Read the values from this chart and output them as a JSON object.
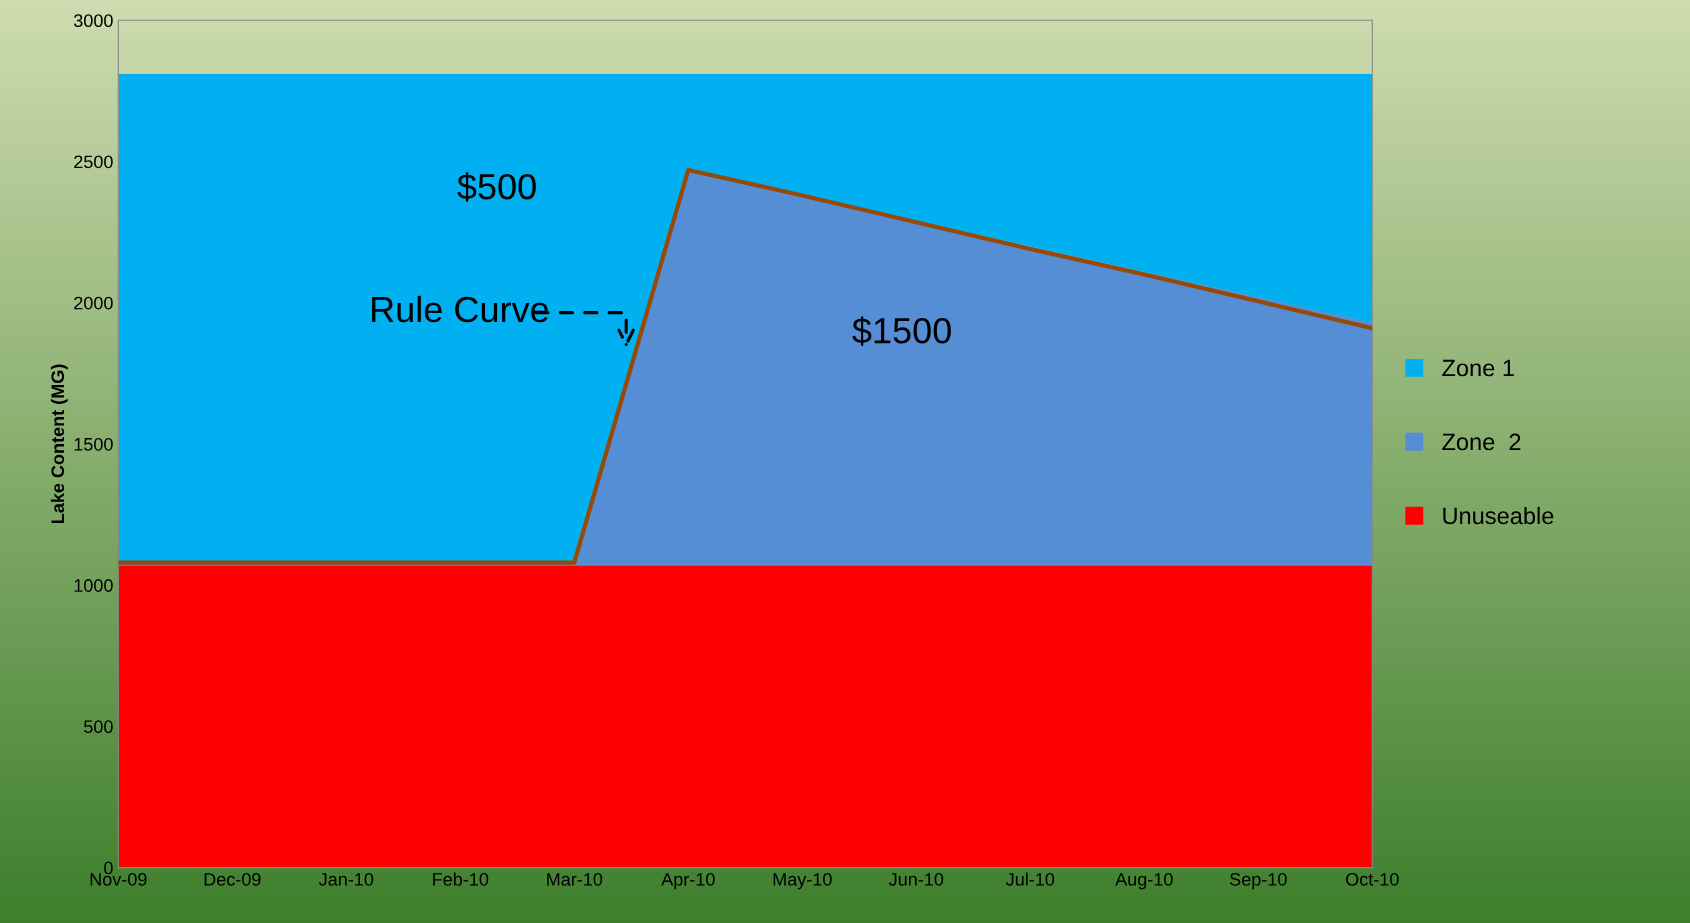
{
  "chart_data": {
    "type": "area",
    "stacked": true,
    "ylabel": "Lake Content (MG)",
    "categories": [
      "Nov-09",
      "Dec-09",
      "Jan-10",
      "Feb-10",
      "Mar-10",
      "Apr-10",
      "May-10",
      "Jun-10",
      "Jul-10",
      "Aug-10",
      "Sep-10",
      "Oct-10"
    ],
    "series": [
      {
        "name": "Unuseable",
        "color": "#ff0000",
        "values": [
          1070,
          1070,
          1070,
          1070,
          1070,
          1070,
          1070,
          1070,
          1070,
          1070,
          1070,
          1070
        ]
      },
      {
        "name": "Zone  2",
        "color": "#558ed5",
        "values": [
          0,
          0,
          0,
          0,
          0,
          1400,
          1310,
          1220,
          1130,
          1040,
          950,
          860
        ]
      },
      {
        "name": "Zone 1",
        "color": "#00b0f0",
        "values": [
          1740,
          1740,
          1740,
          1740,
          1740,
          340,
          430,
          520,
          610,
          700,
          790,
          880
        ]
      },
      {
        "type": "line",
        "color": "#984807",
        "values": [
          1080,
          1080,
          1080,
          1080,
          1080,
          2470,
          2380,
          2285,
          2190,
          2100,
          2005,
          1910
        ]
      }
    ],
    "ylim": [
      0,
      3000
    ],
    "yticks": [
      0,
      500,
      1000,
      1500,
      2000,
      2500,
      3000
    ],
    "grid": false,
    "legend": "right",
    "annotations": [
      "$500",
      "$1500",
      "Rule Curve"
    ]
  }
}
